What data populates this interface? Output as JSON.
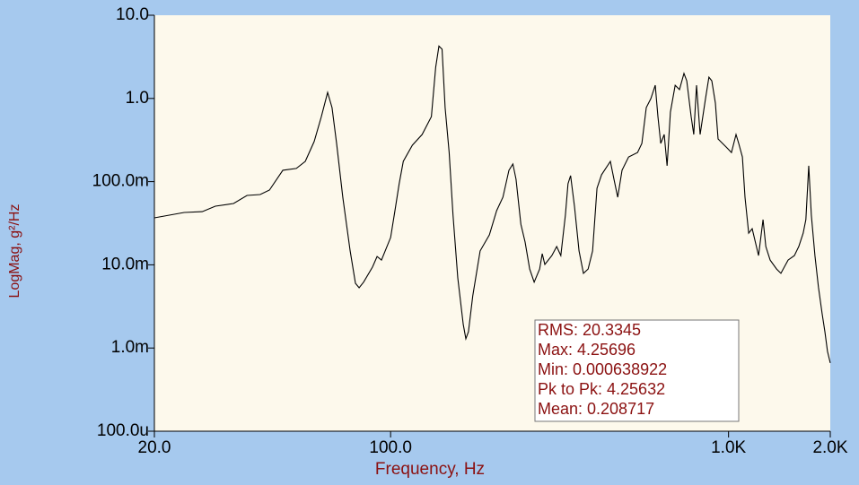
{
  "chart_data": {
    "type": "line",
    "xlabel": "Frequency, Hz",
    "ylabel": "LogMag, g²/Hz",
    "xscale": "log",
    "yscale": "log",
    "color": "#000000",
    "xlim": [
      20,
      2000
    ],
    "ylim": [
      0.0001,
      10
    ],
    "xticks": [
      {
        "value": 20,
        "label": "20.0"
      },
      {
        "value": 100,
        "label": "100.0"
      },
      {
        "value": 1000,
        "label": "1.0K"
      },
      {
        "value": 2000,
        "label": "2.0K"
      }
    ],
    "yticks": [
      {
        "value": 10,
        "label": "10.0"
      },
      {
        "value": 1,
        "label": "1.0"
      },
      {
        "value": 0.1,
        "label": "100.0m"
      },
      {
        "value": 0.01,
        "label": "10.0m"
      },
      {
        "value": 0.001,
        "label": "1.0m"
      },
      {
        "value": 0.0001,
        "label": "100.0u"
      }
    ],
    "x": [
      20,
      24.5,
      27.7,
      30.3,
      34.3,
      37.6,
      41.1,
      43.8,
      48,
      52.6,
      55.9,
      59.4,
      62.4,
      65.1,
      67.1,
      69.2,
      72.2,
      75.9,
      78.7,
      80.7,
      83.2,
      88.4,
      91.2,
      94,
      100,
      103,
      106,
      109,
      116,
      124,
      132,
      136,
      139,
      142,
      145,
      149,
      153,
      158,
      164,
      167,
      170,
      175,
      184,
      196,
      206,
      215,
      224,
      230,
      235,
      243,
      250,
      258,
      266,
      276,
      281,
      286,
      300,
      310,
      319,
      329,
      335,
      341,
      350,
      361,
      372,
      384,
      396,
      408,
      421,
      447,
      458,
      470,
      484,
      506,
      538,
      554,
      571,
      589,
      607,
      618,
      630,
      645,
      658,
      673,
      695,
      716,
      738,
      752,
      775,
      789,
      804,
      824,
      855,
      875,
      892,
      914,
      931,
      990,
      1020,
      1052,
      1072,
      1099,
      1119,
      1147,
      1175,
      1227,
      1265,
      1289,
      1328,
      1387,
      1429,
      1500,
      1566,
      1614,
      1663,
      1694,
      1727,
      1758,
      1801,
      1845,
      1892,
      1928,
      1963,
      2000
    ],
    "values": [
      0.0367,
      0.0426,
      0.0436,
      0.0507,
      0.0546,
      0.0682,
      0.07,
      0.0792,
      0.137,
      0.144,
      0.175,
      0.303,
      0.605,
      1.18,
      0.776,
      0.288,
      0.0649,
      0.0147,
      0.006,
      0.0053,
      0.0062,
      0.0094,
      0.0126,
      0.0114,
      0.0213,
      0.0448,
      0.0942,
      0.175,
      0.274,
      0.369,
      0.605,
      2.37,
      4.26,
      3.9,
      0.776,
      0.224,
      0.0396,
      0.00697,
      0.00192,
      0.00129,
      0.00157,
      0.00424,
      0.0147,
      0.0229,
      0.0448,
      0.0649,
      0.137,
      0.163,
      0.107,
      0.0308,
      0.0188,
      0.0089,
      0.0062,
      0.0089,
      0.0136,
      0.0101,
      0.0129,
      0.0166,
      0.0129,
      0.0396,
      0.0942,
      0.118,
      0.0507,
      0.0147,
      0.0079,
      0.0089,
      0.0147,
      0.0832,
      0.121,
      0.175,
      0.107,
      0.0649,
      0.137,
      0.198,
      0.224,
      0.288,
      0.776,
      0.995,
      1.44,
      0.605,
      0.288,
      0.369,
      0.155,
      0.686,
      1.44,
      1.28,
      2,
      1.63,
      0.605,
      0.369,
      1.44,
      0.369,
      0.995,
      1.8,
      1.63,
      0.879,
      0.326,
      0.254,
      0.224,
      0.369,
      0.288,
      0.198,
      0.0649,
      0.024,
      0.0272,
      0.0129,
      0.0349,
      0.0166,
      0.0114,
      0.0089,
      0.0079,
      0.0114,
      0.0129,
      0.0166,
      0.024,
      0.0349,
      0.155,
      0.0396,
      0.0129,
      0.0054,
      0.0026,
      0.00157,
      0.00091,
      0.00066
    ],
    "annotations": [
      "RMS: 20.3345",
      "Max: 4.25696",
      "Min: 0.000638922",
      "Pk to Pk: 4.25632",
      "Mean: 0.208717"
    ]
  }
}
